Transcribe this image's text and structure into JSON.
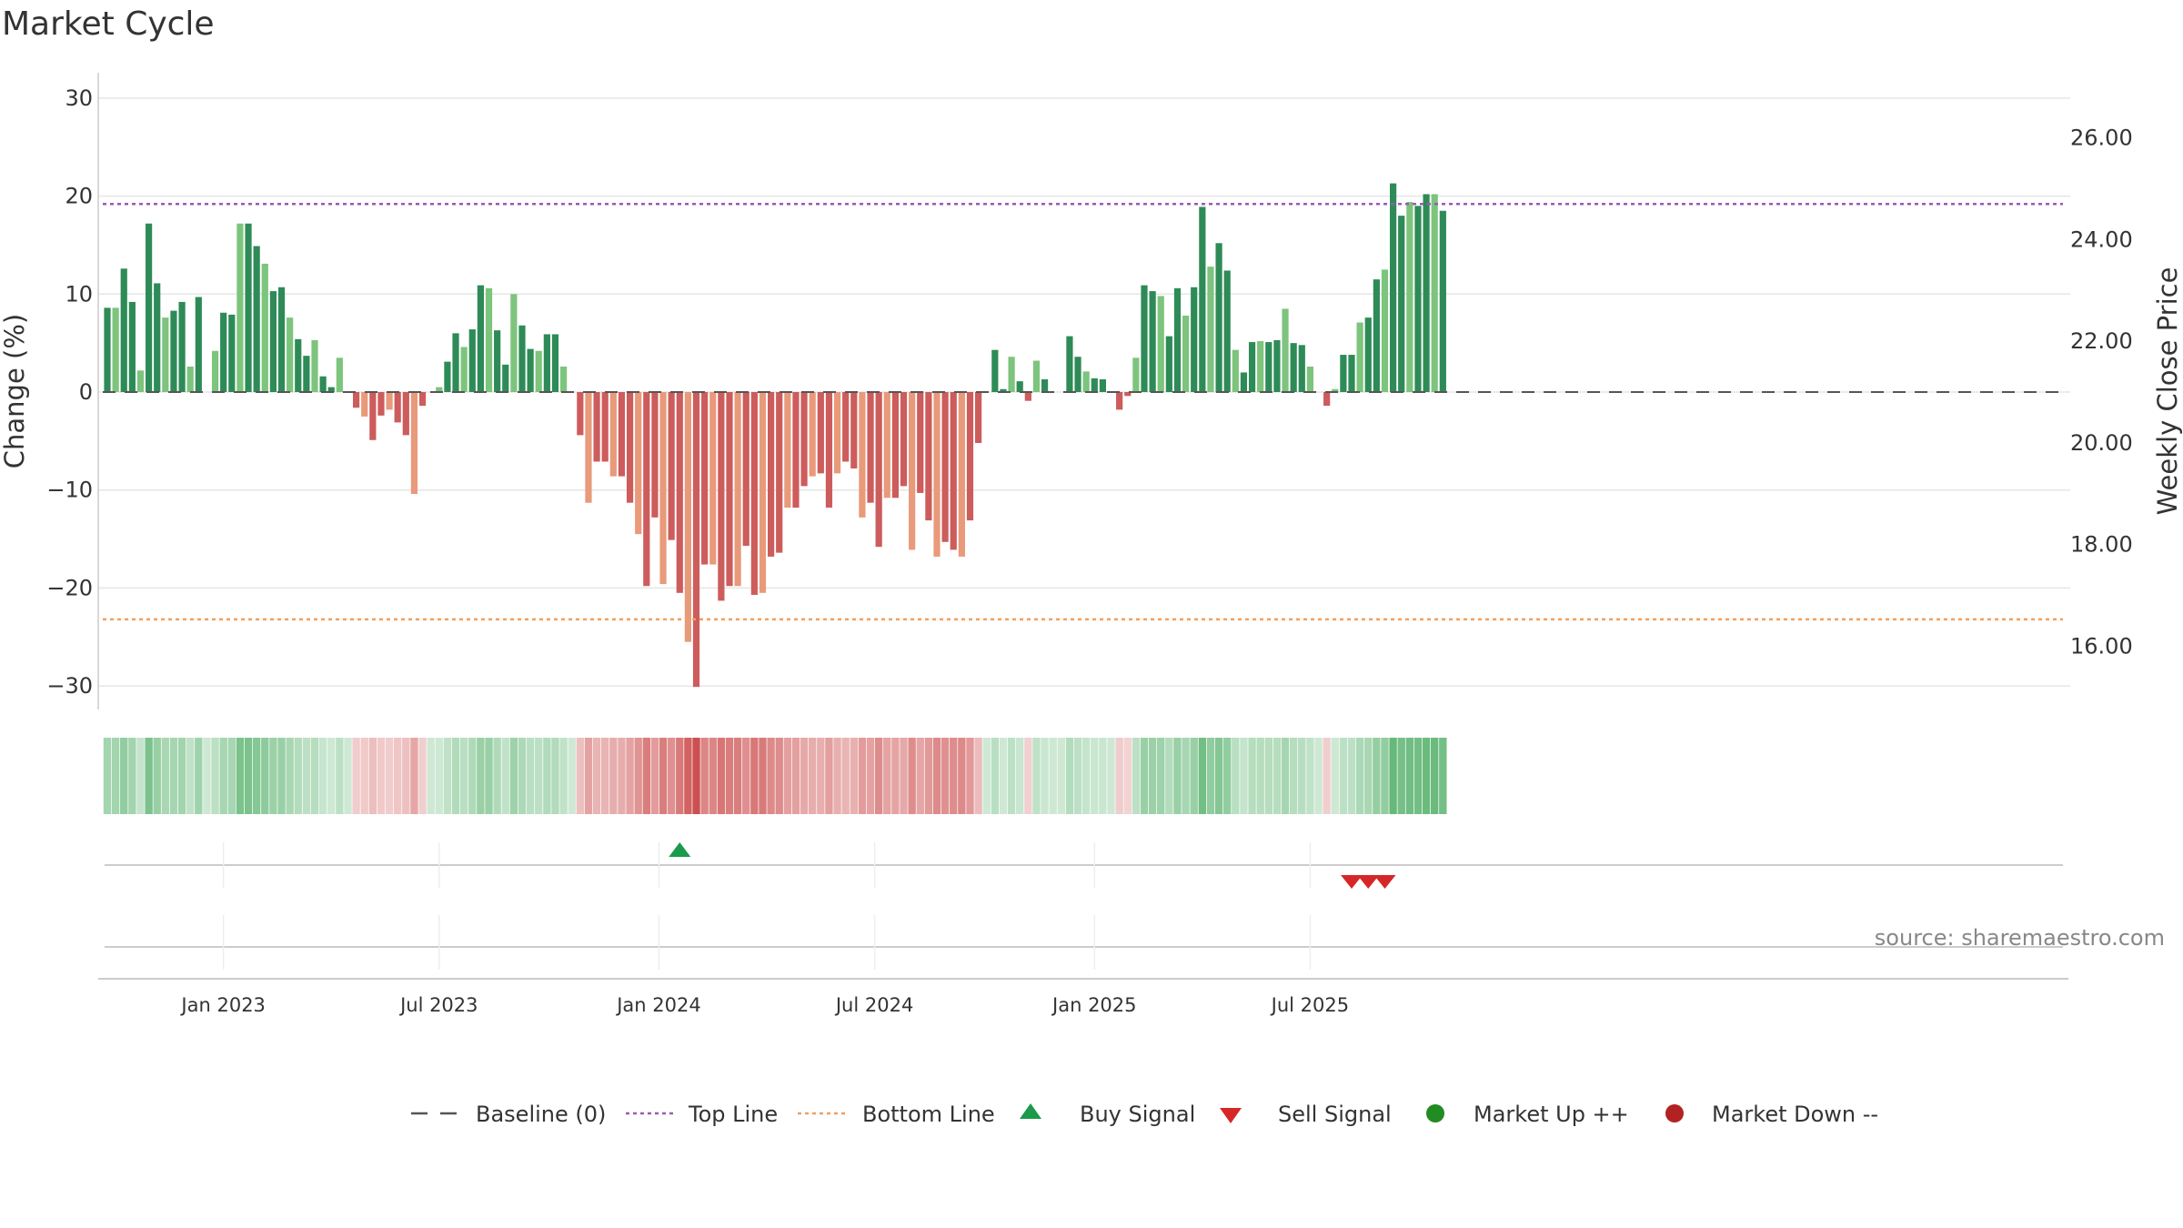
{
  "chart_data": {
    "type": "bar",
    "title": "Market Cycle",
    "ylabel": "Change (%)",
    "y2label": "Weekly Close Price",
    "ylim": [
      -32,
      32
    ],
    "y2lim": [
      14.94,
      27.67
    ],
    "yticks": [
      30,
      20,
      10,
      0,
      -10,
      -20,
      -30
    ],
    "ytick_labels": [
      "30",
      "20",
      "10",
      "0",
      "−10",
      "−20",
      "−30"
    ],
    "y2ticks": [
      26,
      24,
      22,
      20,
      18,
      16
    ],
    "y2tick_labels": [
      "26.00",
      "24.00",
      "22.00",
      "20.00",
      "18.00",
      "16.00"
    ],
    "xticks": [
      {
        "label": "Jan 2023",
        "week": 14
      },
      {
        "label": "Jul 2023",
        "week": 40
      },
      {
        "label": "Jan 2024",
        "week": 66.5
      },
      {
        "label": "Jul 2024",
        "week": 92.5
      },
      {
        "label": "Jan 2025",
        "week": 119
      },
      {
        "label": "Jul 2025",
        "week": 145
      }
    ],
    "top_line": 19.2,
    "bottom_line": -23.2,
    "baseline": 0,
    "values": [
      8.6,
      8.6,
      12.6,
      9.2,
      2.2,
      17.2,
      11.1,
      7.6,
      8.3,
      9.2,
      2.6,
      9.7,
      0,
      4.2,
      8.1,
      7.9,
      17.2,
      17.2,
      14.9,
      13.1,
      10.3,
      10.7,
      7.6,
      5.4,
      3.7,
      5.3,
      1.6,
      0.5,
      3.5,
      0,
      -1.6,
      -2.5,
      -4.9,
      -2.4,
      -1.8,
      -3.1,
      -4.4,
      -10.4,
      -1.4,
      0,
      0.5,
      3.1,
      6.0,
      4.6,
      6.4,
      10.9,
      10.6,
      6.3,
      2.8,
      10.0,
      6.8,
      4.4,
      4.2,
      5.9,
      5.9,
      2.6,
      0,
      -4.4,
      -11.3,
      -7.1,
      -7.1,
      -8.6,
      -8.6,
      -11.3,
      -14.5,
      -19.8,
      -12.8,
      -19.6,
      -15.1,
      -20.5,
      -25.5,
      -30.1,
      -17.6,
      -17.6,
      -21.3,
      -19.8,
      -19.8,
      -15.7,
      -20.7,
      -20.5,
      -16.8,
      -16.4,
      -11.8,
      -11.8,
      -9.6,
      -8.6,
      -8.3,
      -11.8,
      -8.3,
      -7.1,
      -7.8,
      -12.8,
      -11.3,
      -15.8,
      -10.8,
      -10.8,
      -9.6,
      -16.1,
      -10.3,
      -13.1,
      -16.8,
      -15.3,
      -16.1,
      -16.8,
      -13.1,
      -5.2,
      0,
      4.3,
      0.3,
      3.6,
      1.1,
      -0.9,
      3.2,
      1.3,
      0,
      0,
      5.7,
      3.6,
      2.1,
      1.4,
      1.3,
      0,
      -1.8,
      -0.4,
      3.5,
      10.9,
      10.3,
      9.8,
      5.7,
      10.6,
      7.8,
      10.7,
      18.9,
      12.8,
      15.2,
      12.4,
      4.3,
      2.0,
      5.1,
      5.2,
      5.1,
      5.3,
      8.5,
      5.0,
      4.8,
      2.6,
      0,
      -1.4,
      0.3,
      3.8,
      3.8,
      7.1,
      7.6,
      11.5,
      12.5,
      21.3,
      18.0,
      19.4,
      19.0,
      20.2,
      20.2,
      18.5
    ],
    "buy_signals_week": [
      69
    ],
    "sell_signals_week": [
      150,
      152,
      154
    ],
    "colors": {
      "up_dark": "#2e8b57",
      "up_light": "#7dc47d",
      "down_dark": "#cd5c5c",
      "down_light": "#e89a7a",
      "top_line": "#9b59b6",
      "bottom_line": "#f0a060",
      "baseline": "#555555",
      "buy": "#1a9a4a",
      "sell": "#d62728",
      "market_up": "#228b22",
      "market_down": "#b22222"
    },
    "legend": [
      {
        "label": "Baseline (0)",
        "kind": "dash-line",
        "color": "#555555"
      },
      {
        "label": "Top Line",
        "kind": "dot-line",
        "color": "#9b59b6"
      },
      {
        "label": "Bottom Line",
        "kind": "dot-line",
        "color": "#f0a060"
      },
      {
        "label": "Buy Signal",
        "kind": "triangle-up",
        "color": "#1a9a4a"
      },
      {
        "label": "Sell Signal",
        "kind": "triangle-down",
        "color": "#d62728"
      },
      {
        "label": "Market Up ++",
        "kind": "circle",
        "color": "#228b22"
      },
      {
        "label": "Market Down --",
        "kind": "circle",
        "color": "#b22222"
      }
    ],
    "legend_position": "bottom-center",
    "grid": true
  },
  "source": "source: sharemaestro.com"
}
